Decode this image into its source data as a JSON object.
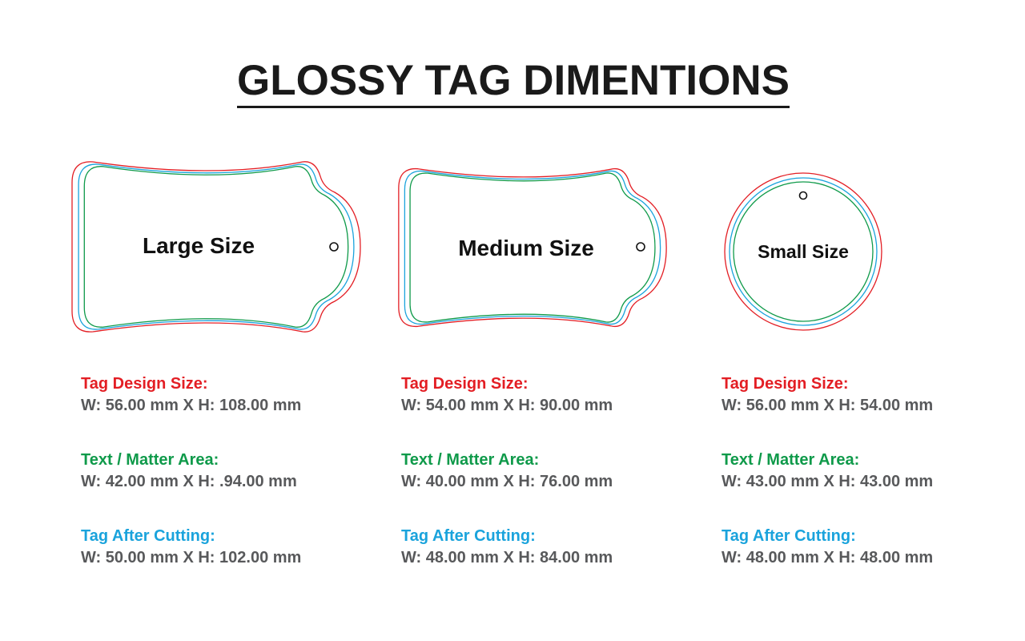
{
  "title": "GLOSSY TAG DIMENTIONS",
  "colors": {
    "design": "#e31e24",
    "matter": "#0f9a4a",
    "cutting": "#1aa3dc",
    "value": "#58595b"
  },
  "tags": [
    {
      "name": "Large Size",
      "specs": [
        {
          "label": "Tag Design Size:",
          "value": "W: 56.00 mm X H: 108.00 mm"
        },
        {
          "label": "Text / Matter Area:",
          "value": "W: 42.00 mm X H: .94.00 mm"
        },
        {
          "label": "Tag After Cutting:",
          "value": "W: 50.00 mm X H: 102.00 mm"
        }
      ]
    },
    {
      "name": "Medium Size",
      "specs": [
        {
          "label": "Tag Design Size:",
          "value": "W: 54.00 mm X H: 90.00 mm"
        },
        {
          "label": "Text / Matter Area:",
          "value": "W: 40.00 mm X H: 76.00 mm"
        },
        {
          "label": "Tag After Cutting:",
          "value": "W: 48.00 mm X H: 84.00 mm"
        }
      ]
    },
    {
      "name": "Small Size",
      "specs": [
        {
          "label": "Tag Design Size:",
          "value": "W: 56.00 mm X H: 54.00 mm"
        },
        {
          "label": "Text / Matter Area:",
          "value": "W: 43.00 mm X H: 43.00 mm"
        },
        {
          "label": "Tag After Cutting:",
          "value": "W: 48.00 mm X H: 48.00 mm"
        }
      ]
    }
  ]
}
